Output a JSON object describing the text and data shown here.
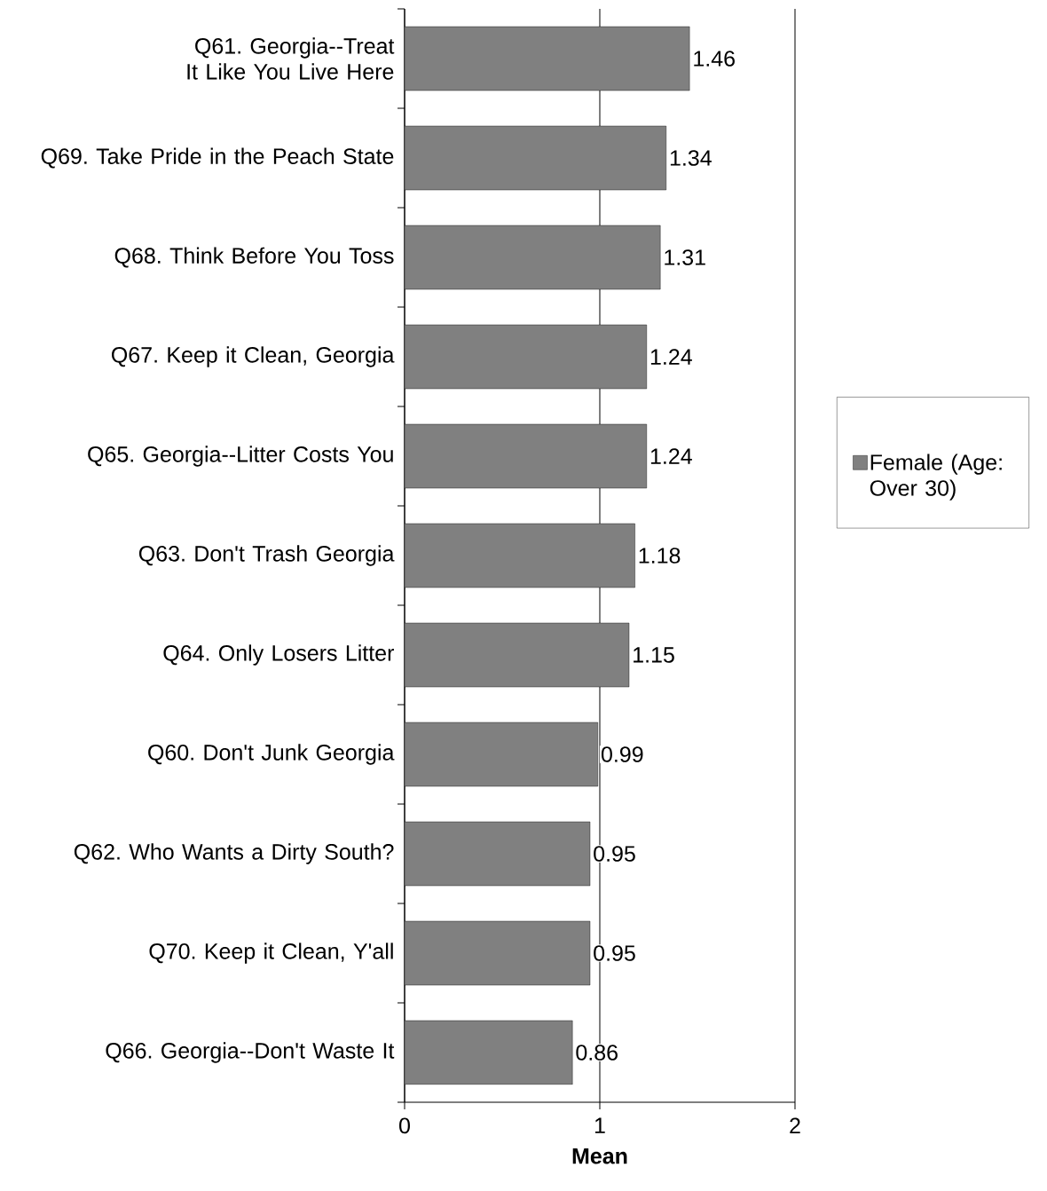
{
  "chart_data": {
    "type": "bar",
    "orientation": "horizontal",
    "xlabel": "Mean",
    "categories": [
      "Q61. Georgia--Treat It Like You Live Here",
      "Q69. Take Pride in the Peach State",
      "Q68. Think Before You Toss",
      "Q67. Keep it Clean, Georgia",
      "Q65. Georgia--Litter Costs You",
      "Q63. Don't Trash Georgia",
      "Q64. Only Losers Litter",
      "Q60. Don't Junk Georgia",
      "Q62. Who Wants a Dirty South?",
      "Q70. Keep it Clean, Y'all",
      "Q66. Georgia--Don't Waste It"
    ],
    "series": [
      {
        "name": "Female (Age: Over 30)",
        "color": "#808080",
        "values": [
          1.46,
          1.34,
          1.31,
          1.24,
          1.24,
          1.18,
          1.15,
          0.99,
          0.95,
          0.95,
          0.86
        ]
      }
    ],
    "xlim": [
      0,
      2
    ],
    "xticks": [
      0,
      1,
      2
    ],
    "grid": "x",
    "legend": "right",
    "data_labels": true
  }
}
